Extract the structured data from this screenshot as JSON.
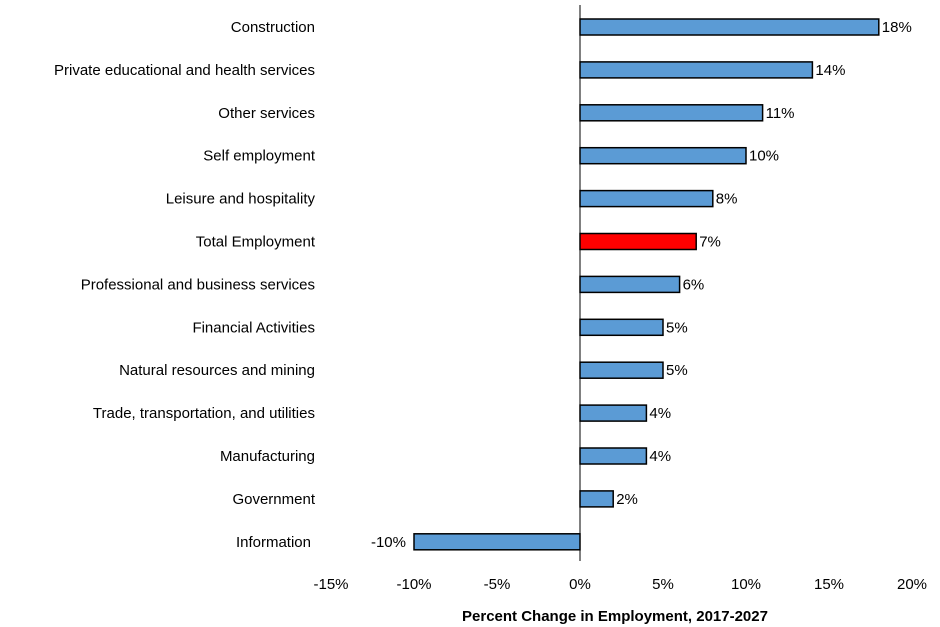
{
  "chart_data": {
    "type": "bar",
    "orientation": "horizontal",
    "xlabel": "Percent Change in Employment, 2017-2027",
    "xlim": [
      -15,
      20
    ],
    "xticks": [
      -15,
      -10,
      -5,
      0,
      5,
      10,
      15,
      20
    ],
    "xtick_labels": [
      "-15%",
      "-10%",
      "-5%",
      "0%",
      "5%",
      "10%",
      "15%",
      "20%"
    ],
    "grid": false,
    "colors": {
      "default": "#5b9bd5",
      "highlight": "#ff0000"
    },
    "bars": [
      {
        "category": "Construction",
        "value": 18,
        "label": "18%",
        "highlight": false
      },
      {
        "category": "Private educational and health services",
        "value": 14,
        "label": "14%",
        "highlight": false
      },
      {
        "category": "Other services",
        "value": 11,
        "label": "11%",
        "highlight": false
      },
      {
        "category": "Self employment",
        "value": 10,
        "label": "10%",
        "highlight": false
      },
      {
        "category": "Leisure and hospitality",
        "value": 8,
        "label": "8%",
        "highlight": false
      },
      {
        "category": "Total Employment",
        "value": 7,
        "label": "7%",
        "highlight": true
      },
      {
        "category": "Professional and business services",
        "value": 6,
        "label": "6%",
        "highlight": false
      },
      {
        "category": "Financial Activities",
        "value": 5,
        "label": "5%",
        "highlight": false
      },
      {
        "category": "Natural resources and mining",
        "value": 5,
        "label": "5%",
        "highlight": false
      },
      {
        "category": "Trade, transportation, and utilities",
        "value": 4,
        "label": "4%",
        "highlight": false
      },
      {
        "category": "Manufacturing",
        "value": 4,
        "label": "4%",
        "highlight": false
      },
      {
        "category": "Government",
        "value": 2,
        "label": "2%",
        "highlight": false
      },
      {
        "category": "Information",
        "value": -10,
        "label": "-10%",
        "highlight": false
      }
    ]
  }
}
